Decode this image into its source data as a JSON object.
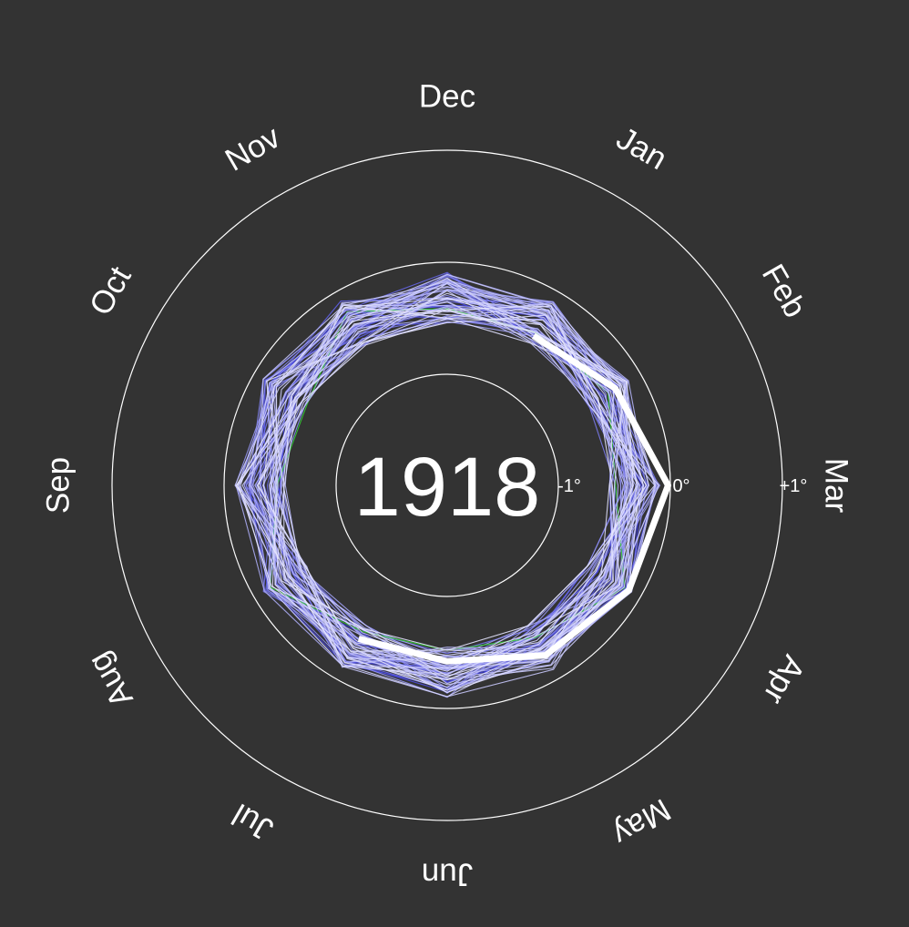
{
  "chart_data": {
    "type": "line",
    "subtype": "polar-climate-spiral",
    "current_year": "1918",
    "months": [
      "Jan",
      "Feb",
      "Mar",
      "Apr",
      "May",
      "Jun",
      "Jul",
      "Aug",
      "Sep",
      "Oct",
      "Nov",
      "Dec"
    ],
    "rings": [
      {
        "value": -1,
        "label": "-1°"
      },
      {
        "value": 0,
        "label": "0°"
      },
      {
        "value": 1,
        "label": "+1°"
      }
    ],
    "rlim": [
      -2,
      1.5
    ],
    "colors": {
      "background": "#333333",
      "rings": "#ffffff",
      "current_year_line": "#ffffff",
      "early_years": "#3a3adf",
      "late_years": "#e8e8ff",
      "highlight_series": "#33cc33"
    },
    "current_year_anomalies": [
      -0.45,
      -0.26,
      -0.02,
      -0.12,
      -0.24,
      -0.42,
      -0.41
    ],
    "past_years": {
      "range": "1850-1917",
      "base_anomaly": -0.32,
      "spread": 0.23,
      "count": 68
    }
  }
}
